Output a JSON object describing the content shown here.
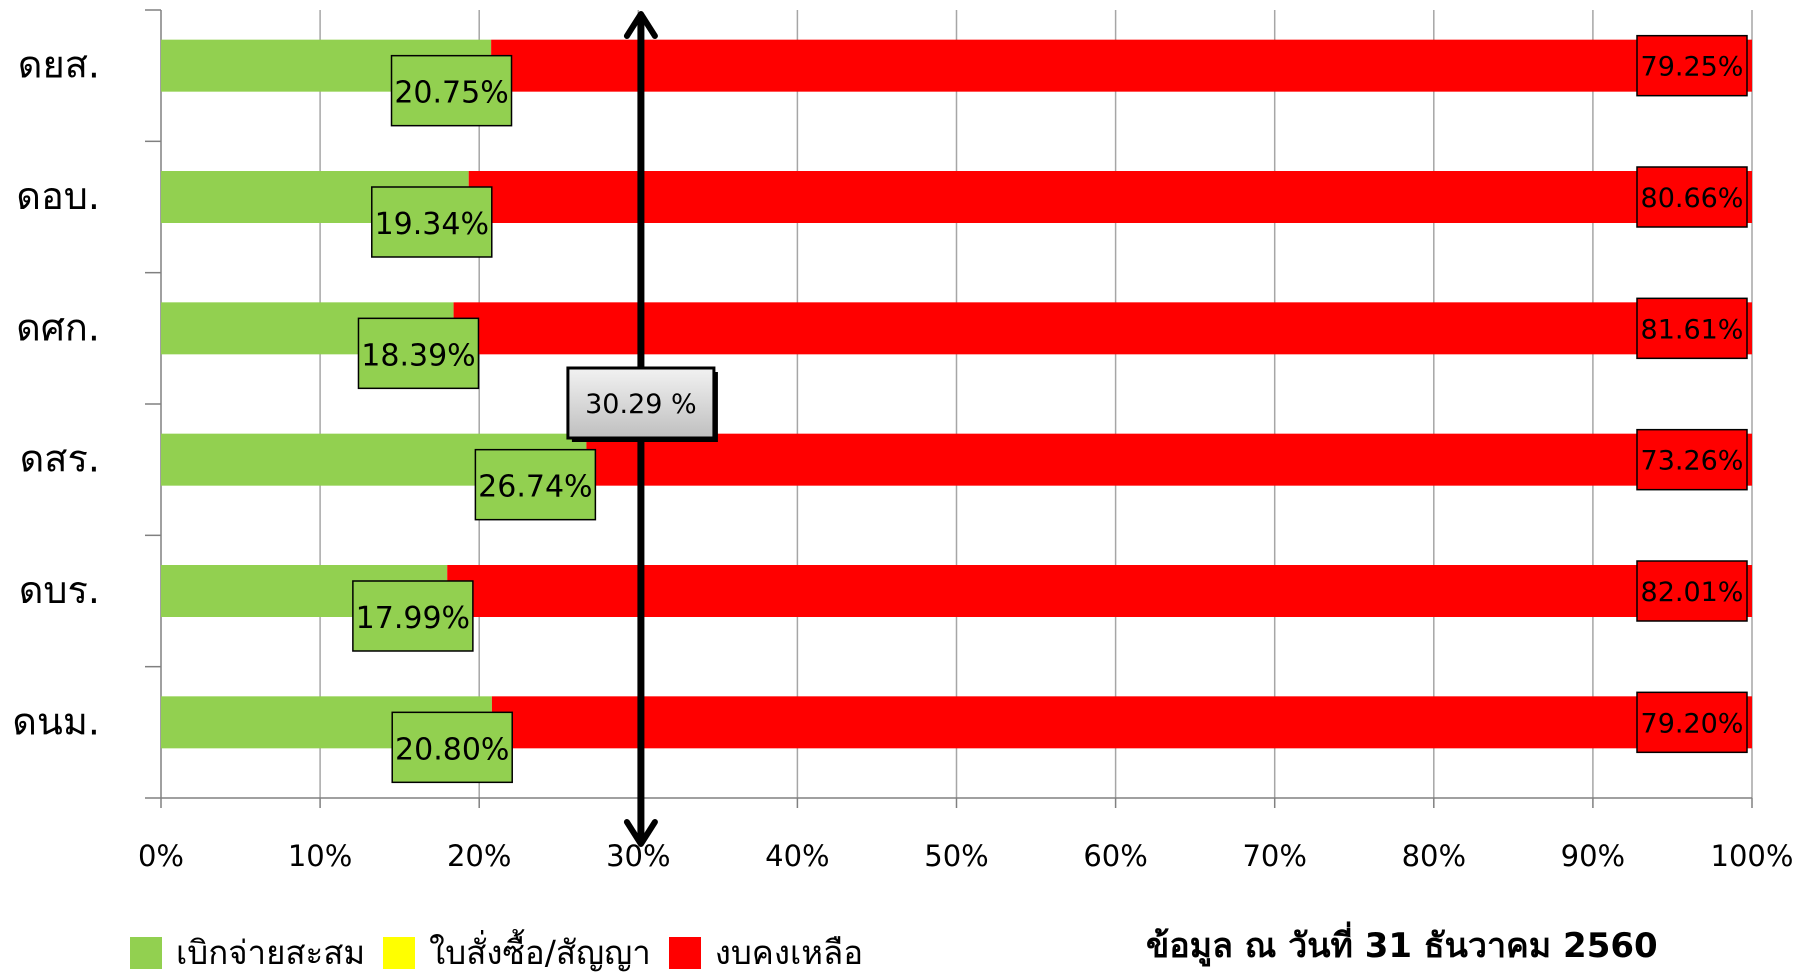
{
  "chart_data": {
    "type": "bar",
    "orientation": "horizontal",
    "stacked": true,
    "categories": [
      "ดยส.",
      "ดอบ.",
      "ดศก.",
      "ดสร.",
      "ดบร.",
      "ดนม."
    ],
    "series": [
      {
        "name": "เบิกจ่ายสะสม",
        "color": "#92D050",
        "values": [
          20.75,
          19.34,
          18.39,
          26.74,
          17.99,
          20.8
        ],
        "labels": [
          "20.75%",
          "19.34%",
          "18.39%",
          "26.74%",
          "17.99%",
          "20.80%"
        ]
      },
      {
        "name": "ใบสั่งซื้อ/สัญญา",
        "color": "#FFFF00",
        "values": [
          0,
          0,
          0,
          0,
          0,
          0
        ],
        "labels": []
      },
      {
        "name": "งบคงเหลือ",
        "color": "#FF0000",
        "values": [
          79.25,
          80.66,
          81.61,
          73.26,
          82.01,
          79.2
        ],
        "labels": [
          "79.25%",
          "80.66%",
          "81.61%",
          "73.26%",
          "82.01%",
          "79.20%"
        ]
      }
    ],
    "xlim": [
      0,
      100
    ],
    "x_ticks": [
      "0%",
      "10%",
      "20%",
      "30%",
      "40%",
      "50%",
      "60%",
      "70%",
      "80%",
      "90%",
      "100%"
    ],
    "grid": true,
    "legend": "bottom-left",
    "target_line": {
      "value": 30.29,
      "label": "30.29 %"
    }
  },
  "footer_note": "ข้อมูล ณ วันที่ 31 ธันวาคม 2560"
}
